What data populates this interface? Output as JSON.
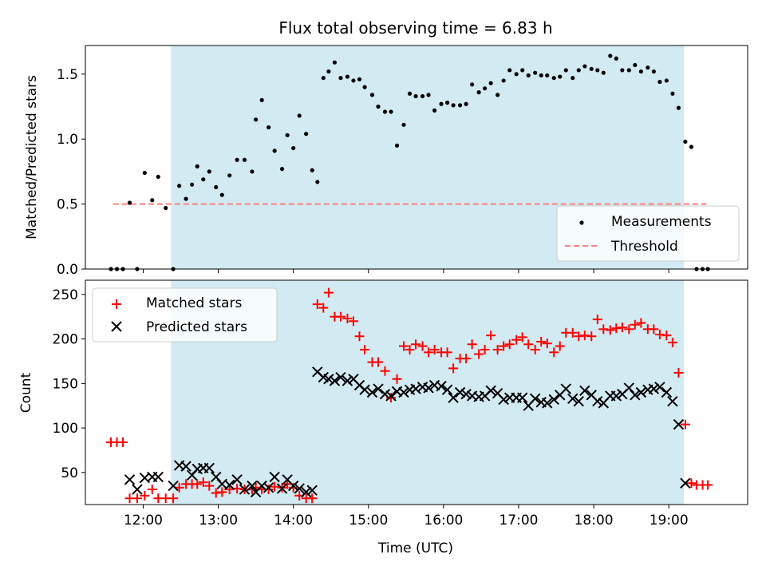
{
  "chart_data": [
    {
      "type": "scatter",
      "title": "Flux total observing time = 6.83 h",
      "xlabel": "",
      "ylabel": "Matched/Predicted stars",
      "xlim": [
        11.23,
        20.05
      ],
      "ylim": [
        0,
        1.72
      ],
      "x_tick_labels": [
        "12:00",
        "13:00",
        "14:00",
        "15:00",
        "16:00",
        "17:00",
        "18:00",
        "19:00"
      ],
      "y_ticks": [
        0,
        0.5,
        1.0,
        1.5
      ],
      "y_tick_labels": [
        "0.0",
        "0.5",
        "1.0",
        "1.5"
      ],
      "shaded_region": {
        "x": [
          12.37,
          19.2
        ],
        "color": "#add8e6"
      },
      "threshold_series": {
        "name": "Threshold",
        "value": 0.5,
        "x": [
          11.6,
          19.5
        ],
        "color": "#ff7f7f"
      },
      "legend": {
        "position": "lower-right",
        "entries": [
          "Measurements",
          "Threshold"
        ]
      },
      "series": [
        {
          "name": "Measurements",
          "color": "#000000",
          "x": [
            11.57,
            11.65,
            11.73,
            11.82,
            11.92,
            12.02,
            12.12,
            12.2,
            12.3,
            12.4,
            12.48,
            12.57,
            12.65,
            12.72,
            12.8,
            12.88,
            12.97,
            13.05,
            13.15,
            13.25,
            13.35,
            13.45,
            13.5,
            13.58,
            13.67,
            13.75,
            13.85,
            13.92,
            14.0,
            14.08,
            14.17,
            14.25,
            14.32,
            14.4,
            14.47,
            14.55,
            14.63,
            14.72,
            14.8,
            14.88,
            14.95,
            15.05,
            15.13,
            15.22,
            15.3,
            15.38,
            15.47,
            15.55,
            15.63,
            15.72,
            15.8,
            15.88,
            15.97,
            16.05,
            16.13,
            16.22,
            16.3,
            16.38,
            16.47,
            16.55,
            16.63,
            16.72,
            16.8,
            16.88,
            16.97,
            17.05,
            17.13,
            17.22,
            17.3,
            17.38,
            17.47,
            17.55,
            17.63,
            17.72,
            17.8,
            17.88,
            17.97,
            18.05,
            18.13,
            18.22,
            18.3,
            18.38,
            18.47,
            18.55,
            18.63,
            18.72,
            18.8,
            18.88,
            18.97,
            19.05,
            19.13,
            19.22,
            19.3,
            19.37,
            19.45,
            19.52
          ],
          "y": [
            0.0,
            0.0,
            0.0,
            0.51,
            0.0,
            0.74,
            0.53,
            0.71,
            0.47,
            0.0,
            0.64,
            0.54,
            0.65,
            0.79,
            0.69,
            0.75,
            0.63,
            0.57,
            0.72,
            0.84,
            0.84,
            0.75,
            1.15,
            1.3,
            1.09,
            0.91,
            0.77,
            1.03,
            0.93,
            1.18,
            1.04,
            0.76,
            0.67,
            1.47,
            1.52,
            1.59,
            1.47,
            1.48,
            1.45,
            1.46,
            1.4,
            1.34,
            1.25,
            1.21,
            1.21,
            0.95,
            1.11,
            1.35,
            1.33,
            1.33,
            1.34,
            1.22,
            1.27,
            1.28,
            1.26,
            1.26,
            1.27,
            1.42,
            1.36,
            1.39,
            1.43,
            1.34,
            1.45,
            1.53,
            1.5,
            1.53,
            1.49,
            1.51,
            1.49,
            1.49,
            1.47,
            1.48,
            1.53,
            1.47,
            1.53,
            1.56,
            1.54,
            1.53,
            1.51,
            1.64,
            1.62,
            1.53,
            1.53,
            1.57,
            1.52,
            1.55,
            1.52,
            1.44,
            1.45,
            1.35,
            1.24,
            0.98,
            0.94,
            0.0,
            0.0,
            0.0
          ]
        }
      ]
    },
    {
      "type": "scatter",
      "title": "",
      "xlabel": "Time (UTC)",
      "ylabel": "Count",
      "xlim": [
        11.23,
        20.05
      ],
      "ylim": [
        14,
        266
      ],
      "x_tick_labels": [
        "12:00",
        "13:00",
        "14:00",
        "15:00",
        "16:00",
        "17:00",
        "18:00",
        "19:00"
      ],
      "y_ticks": [
        50,
        100,
        150,
        200,
        250
      ],
      "y_tick_labels": [
        "50",
        "100",
        "150",
        "200",
        "250"
      ],
      "shaded_region": {
        "x": [
          12.37,
          19.2
        ],
        "color": "#add8e6"
      },
      "legend": {
        "position": "upper-left",
        "entries": [
          "Matched stars",
          "Predicted stars"
        ]
      },
      "series": [
        {
          "name": "Matched stars",
          "marker": "plus",
          "color": "#ff0000",
          "x": [
            11.57,
            11.65,
            11.73,
            11.82,
            11.92,
            12.02,
            12.12,
            12.2,
            12.3,
            12.4,
            12.48,
            12.57,
            12.65,
            12.72,
            12.8,
            12.88,
            12.97,
            13.05,
            13.15,
            13.25,
            13.35,
            13.45,
            13.5,
            13.58,
            13.67,
            13.75,
            13.85,
            13.92,
            14.0,
            14.08,
            14.17,
            14.25,
            14.32,
            14.4,
            14.47,
            14.55,
            14.63,
            14.72,
            14.8,
            14.88,
            14.95,
            15.05,
            15.13,
            15.22,
            15.3,
            15.38,
            15.47,
            15.55,
            15.63,
            15.72,
            15.8,
            15.88,
            15.97,
            16.05,
            16.13,
            16.22,
            16.3,
            16.38,
            16.47,
            16.55,
            16.63,
            16.72,
            16.8,
            16.88,
            16.97,
            17.05,
            17.13,
            17.22,
            17.3,
            17.38,
            17.47,
            17.55,
            17.63,
            17.72,
            17.8,
            17.88,
            17.97,
            18.05,
            18.13,
            18.22,
            18.3,
            18.38,
            18.47,
            18.55,
            18.63,
            18.72,
            18.8,
            18.88,
            18.97,
            19.05,
            19.13,
            19.22,
            19.3,
            19.37,
            19.45,
            19.52
          ],
          "y": [
            84,
            84,
            84,
            21,
            21,
            24,
            31,
            21,
            21,
            21,
            33,
            37,
            37,
            37,
            39,
            35,
            27,
            28,
            31,
            32,
            31,
            31,
            33,
            31,
            31,
            34,
            33,
            37,
            33,
            24,
            21,
            21,
            239,
            235,
            252,
            225,
            225,
            223,
            220,
            203,
            188,
            174,
            174,
            164,
            134,
            155,
            192,
            188,
            194,
            192,
            185,
            188,
            185,
            185,
            167,
            178,
            178,
            194,
            183,
            188,
            204,
            188,
            192,
            194,
            199,
            202,
            194,
            188,
            197,
            195,
            185,
            192,
            207,
            207,
            203,
            204,
            203,
            222,
            211,
            210,
            212,
            213,
            211,
            216,
            218,
            211,
            211,
            205,
            204,
            196,
            162,
            104,
            38,
            36,
            36,
            36
          ]
        },
        {
          "name": "Predicted stars",
          "marker": "x",
          "color": "#000000",
          "x": [
            11.82,
            11.92,
            12.02,
            12.12,
            12.2,
            12.4,
            12.48,
            12.57,
            12.65,
            12.72,
            12.8,
            12.88,
            12.97,
            13.05,
            13.15,
            13.25,
            13.35,
            13.45,
            13.5,
            13.58,
            13.67,
            13.75,
            13.85,
            13.92,
            14.0,
            14.08,
            14.17,
            14.25,
            14.32,
            14.4,
            14.47,
            14.55,
            14.63,
            14.72,
            14.8,
            14.88,
            14.95,
            15.05,
            15.13,
            15.22,
            15.3,
            15.38,
            15.47,
            15.55,
            15.63,
            15.72,
            15.8,
            15.88,
            15.97,
            16.05,
            16.13,
            16.22,
            16.3,
            16.38,
            16.47,
            16.55,
            16.63,
            16.72,
            16.8,
            16.88,
            16.97,
            17.05,
            17.13,
            17.22,
            17.3,
            17.38,
            17.47,
            17.55,
            17.63,
            17.72,
            17.8,
            17.88,
            17.97,
            18.05,
            18.13,
            18.22,
            18.3,
            18.38,
            18.47,
            18.55,
            18.63,
            18.72,
            18.8,
            18.88,
            18.97,
            19.05,
            19.13,
            19.22
          ],
          "y": [
            42,
            31,
            44,
            45,
            45,
            35,
            58,
            57,
            47,
            54,
            55,
            55,
            45,
            37,
            36,
            42,
            31,
            35,
            28,
            35,
            33,
            45,
            32,
            42,
            35,
            32,
            28,
            30,
            163,
            157,
            155,
            153,
            157,
            153,
            155,
            148,
            143,
            140,
            144,
            138,
            136,
            141,
            140,
            143,
            144,
            146,
            145,
            148,
            147,
            143,
            134,
            140,
            138,
            136,
            135,
            136,
            142,
            139,
            132,
            134,
            134,
            134,
            125,
            133,
            129,
            128,
            132,
            137,
            144,
            133,
            130,
            142,
            137,
            130,
            128,
            136,
            136,
            138,
            145,
            137,
            140,
            143,
            144,
            146,
            140,
            130,
            104,
            38
          ]
        }
      ]
    }
  ]
}
